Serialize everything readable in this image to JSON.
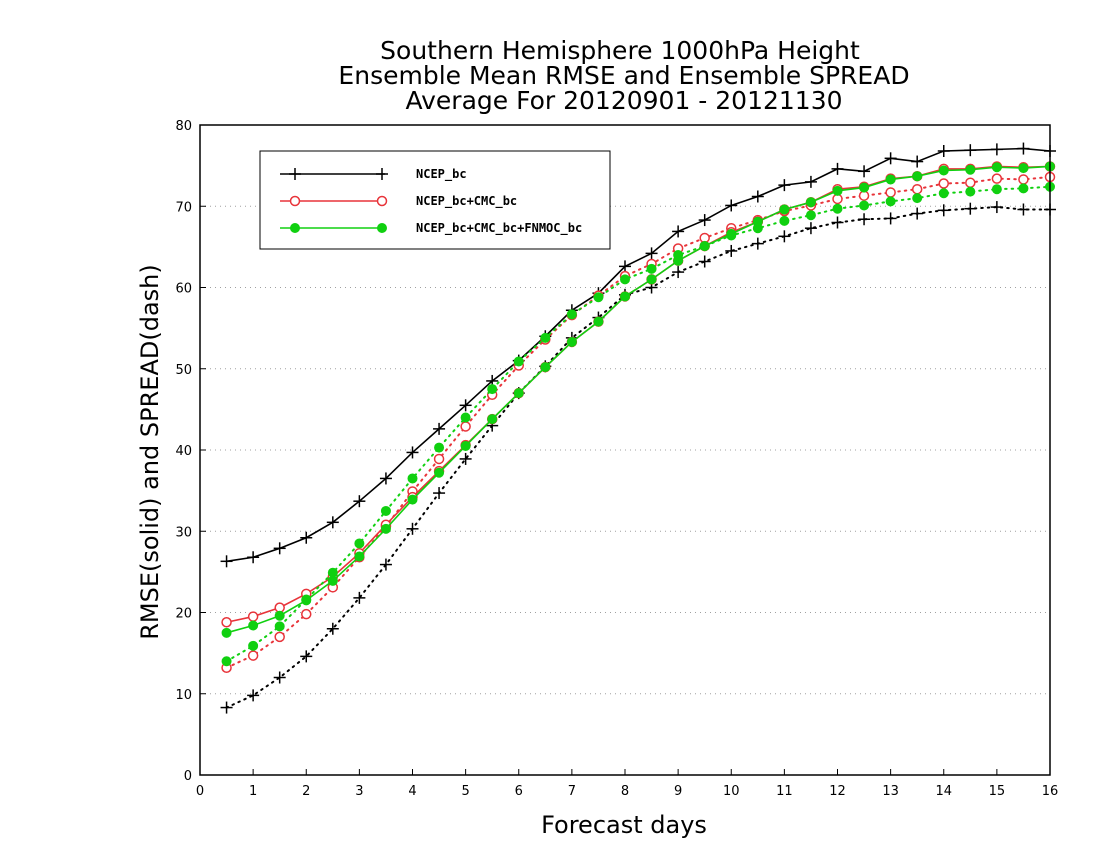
{
  "chart_data": {
    "type": "line",
    "title": [
      "Southern Hemisphere 1000hPa Height",
      "Ensemble Mean RMSE and Ensemble SPREAD",
      "Average For 20120901 - 20121130"
    ],
    "xlabel": "Forecast days",
    "ylabel": "RMSE(solid) and SPREAD(dash)",
    "xlim": [
      0,
      16
    ],
    "ylim": [
      0,
      80
    ],
    "x_ticks": [
      0,
      1,
      2,
      3,
      4,
      5,
      6,
      7,
      8,
      9,
      10,
      11,
      12,
      13,
      14,
      15,
      16
    ],
    "y_ticks": [
      0,
      10,
      20,
      30,
      40,
      50,
      60,
      70,
      80
    ],
    "grid": "horizontal dotted",
    "legend_position": "top-left",
    "x": [
      0.5,
      1,
      1.5,
      2,
      2.5,
      3,
      3.5,
      4,
      4.5,
      5,
      5.5,
      6,
      6.5,
      7,
      7.5,
      8,
      8.5,
      9,
      9.5,
      10,
      10.5,
      11,
      11.5,
      12,
      12.5,
      13,
      13.5,
      14,
      14.5,
      15,
      15.5,
      16
    ],
    "series": [
      {
        "name": "NCEP_bc",
        "color": "#000000",
        "marker": "plus",
        "rmse": [
          26.3,
          26.8,
          27.9,
          29.2,
          31.1,
          33.7,
          36.5,
          39.7,
          42.6,
          45.5,
          48.5,
          51.0,
          54.0,
          57.2,
          59.3,
          62.6,
          64.2,
          66.9,
          68.3,
          70.1,
          71.2,
          72.6,
          73.0,
          74.6,
          74.3,
          75.9,
          75.5,
          76.8,
          76.9,
          77.0,
          77.1,
          76.8
        ],
        "spread": [
          8.3,
          9.8,
          12.0,
          14.6,
          18.0,
          21.8,
          25.9,
          30.3,
          34.7,
          38.9,
          43.0,
          47.0,
          50.3,
          53.8,
          56.3,
          59.1,
          60.0,
          61.9,
          63.2,
          64.5,
          65.4,
          66.3,
          67.3,
          68.0,
          68.4,
          68.5,
          69.1,
          69.5,
          69.7,
          69.9,
          69.6,
          69.6
        ]
      },
      {
        "name": "NCEP_bc+CMC_bc",
        "color": "#e8343a",
        "marker": "open-circle",
        "rmse": [
          18.8,
          19.5,
          20.6,
          22.3,
          24.4,
          27.3,
          30.8,
          34.2,
          37.4,
          40.6,
          43.8,
          47.0,
          50.2,
          53.3,
          55.8,
          58.9,
          61.0,
          63.3,
          65.1,
          66.8,
          68.1,
          69.6,
          70.5,
          72.1,
          72.4,
          73.4,
          73.7,
          74.6,
          74.6,
          74.9,
          74.8,
          74.9
        ],
        "spread": [
          13.2,
          14.7,
          17.0,
          19.8,
          23.1,
          26.8,
          30.6,
          34.9,
          38.9,
          42.9,
          46.8,
          50.4,
          53.6,
          56.6,
          59.0,
          61.4,
          62.9,
          64.8,
          66.1,
          67.3,
          68.3,
          69.4,
          70.1,
          70.9,
          71.3,
          71.7,
          72.1,
          72.8,
          72.9,
          73.4,
          73.3,
          73.6
        ]
      },
      {
        "name": "NCEP_bc+CMC_bc+FNMOC_bc",
        "color": "#10d010",
        "marker": "filled-circle",
        "rmse": [
          17.5,
          18.4,
          19.6,
          21.5,
          23.9,
          26.9,
          30.3,
          33.9,
          37.2,
          40.5,
          43.8,
          47.0,
          50.2,
          53.3,
          55.8,
          58.9,
          61.0,
          63.3,
          65.1,
          66.6,
          68.1,
          69.6,
          70.5,
          71.9,
          72.3,
          73.3,
          73.7,
          74.4,
          74.5,
          74.8,
          74.7,
          74.9
        ],
        "spread": [
          14.0,
          15.9,
          18.3,
          21.6,
          24.9,
          28.5,
          32.5,
          36.5,
          40.3,
          44.0,
          47.5,
          50.9,
          53.8,
          56.7,
          58.8,
          61.0,
          62.3,
          64.0,
          65.1,
          66.4,
          67.3,
          68.2,
          68.9,
          69.7,
          70.1,
          70.6,
          71.0,
          71.6,
          71.8,
          72.1,
          72.2,
          72.4
        ]
      }
    ]
  }
}
